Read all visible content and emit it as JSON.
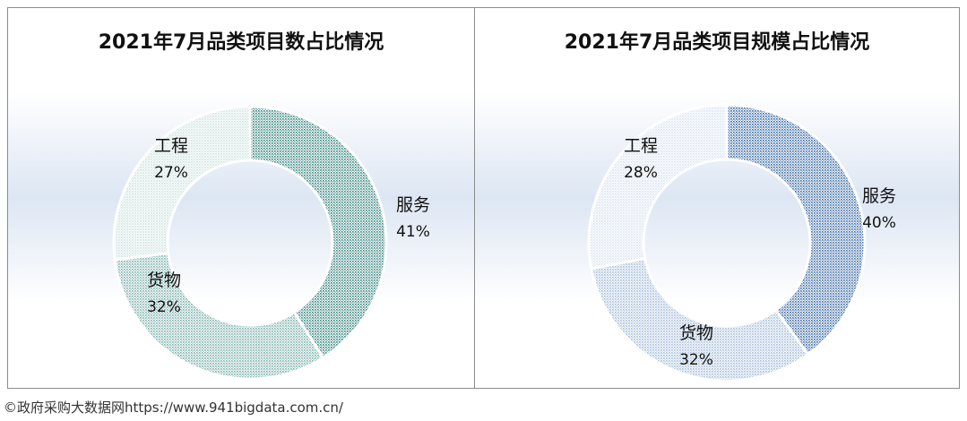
{
  "chart_data": [
    {
      "type": "pie",
      "title": "2021年7月品类项目数占比情况",
      "categories": [
        "服务",
        "货物",
        "工程"
      ],
      "values": [
        41,
        32,
        27
      ],
      "labels": [
        "41%",
        "32%",
        "27%"
      ]
    },
    {
      "type": "pie",
      "title": "2021年7月品类项目规模占比情况",
      "categories": [
        "服务",
        "货物",
        "工程"
      ],
      "values": [
        40,
        32,
        28
      ],
      "labels": [
        "40%",
        "32%",
        "28%"
      ]
    }
  ],
  "footer": {
    "source": "©政府采购大数据网https://www.941bigdata.com.cn/"
  },
  "colors": {
    "chart1": [
      "#3f8a85",
      "#7fb3ae",
      "#cfe3e0"
    ],
    "chart2": [
      "#3f6fa8",
      "#a7bfdc",
      "#d9e4f1"
    ]
  }
}
